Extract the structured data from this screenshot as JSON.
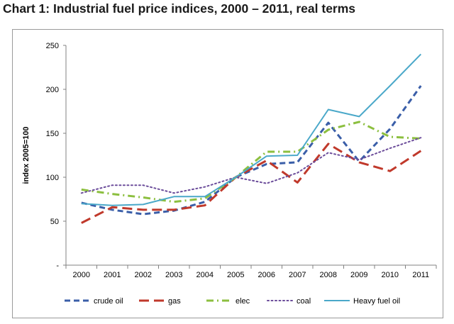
{
  "title": "Chart 1: Industrial fuel price indices, 2000 – 2011, real terms",
  "chart_data": {
    "type": "line",
    "title": "Chart 1: Industrial fuel price indices, 2000 – 2011, real terms",
    "xlabel": "",
    "ylabel": "index 2005=100",
    "categories": [
      "2000",
      "2001",
      "2002",
      "2003",
      "2004",
      "2005",
      "2006",
      "2007",
      "2008",
      "2009",
      "2010",
      "2011"
    ],
    "ylim": [
      0,
      250
    ],
    "yticks": [
      "-",
      "50",
      "100",
      "150",
      "200",
      "250"
    ],
    "grid": false,
    "legend_position": "bottom",
    "series": [
      {
        "name": "crude oil",
        "color": "#3a5ea8",
        "style": "dash",
        "values": [
          71,
          63,
          58,
          62,
          72,
          100,
          115,
          117,
          162,
          118,
          155,
          204
        ]
      },
      {
        "name": "gas",
        "color": "#c0392b",
        "style": "longdash",
        "values": [
          48,
          66,
          63,
          63,
          68,
          100,
          119,
          94,
          138,
          117,
          107,
          130
        ]
      },
      {
        "name": "elec",
        "color": "#8cbf3f",
        "style": "dashdot",
        "values": [
          86,
          81,
          77,
          72,
          76,
          100,
          129,
          129,
          154,
          163,
          146,
          144
        ]
      },
      {
        "name": "coal",
        "color": "#6b4c9a",
        "style": "dot",
        "values": [
          82,
          91,
          91,
          82,
          89,
          100,
          93,
          105,
          128,
          120,
          133,
          145
        ]
      },
      {
        "name": "Heavy fuel oil",
        "color": "#4aa8c9",
        "style": "solid",
        "values": [
          70,
          68,
          69,
          78,
          78,
          100,
          124,
          125,
          177,
          169,
          204,
          240
        ]
      }
    ]
  }
}
